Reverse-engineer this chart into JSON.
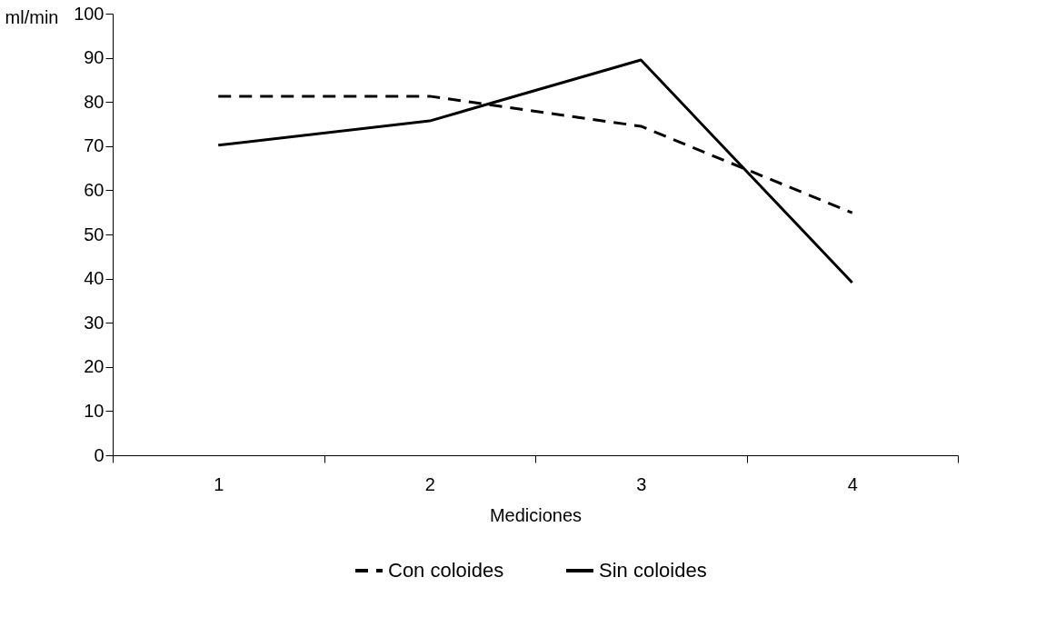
{
  "chart_data": {
    "type": "line",
    "xlabel": "Mediciones",
    "ylabel": "ml/min",
    "categories": [
      "1",
      "2",
      "3",
      "4"
    ],
    "series": [
      {
        "name": "Con coloides",
        "color": "#000000",
        "line_style": "dashed",
        "values": [
          81.3,
          81.3,
          74.5,
          54.9
        ]
      },
      {
        "name": "Sin coloides",
        "color": "#000000",
        "line_style": "solid",
        "values": [
          70.2,
          75.7,
          89.5,
          39.1
        ]
      }
    ],
    "ylim": [
      0,
      100
    ],
    "yticks": [
      0,
      10,
      20,
      30,
      40,
      50,
      60,
      70,
      80,
      90,
      100
    ],
    "grid": false,
    "legend": "bottom",
    "marker": "none"
  }
}
